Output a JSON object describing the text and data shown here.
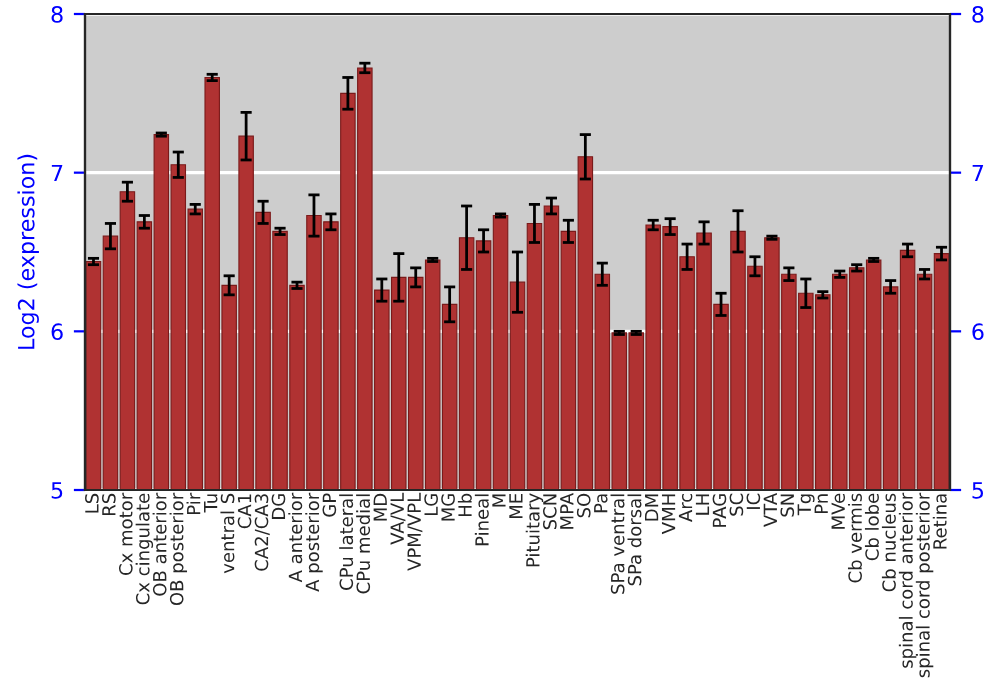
{
  "chart_data": {
    "type": "bar",
    "ylabel": "Log2 (expression)",
    "categories": [
      "LS",
      "RS",
      "Cx motor",
      "Cx cingulate",
      "OB anterior",
      "OB posterior",
      "Pir",
      "Tu",
      "ventral S",
      "CA1",
      "CA2/CA3",
      "DG",
      "A anterior",
      "A posterior",
      "GP",
      "CPu lateral",
      "CPu medial",
      "MD",
      "VA/VL",
      "VPM/VPL",
      "LG",
      "MG",
      "Hb",
      "Pineal",
      "M",
      "ME",
      "Pituitary",
      "SCN",
      "MPA",
      "SO",
      "Pa",
      "SPa ventral",
      "SPa dorsal",
      "DM",
      "VMH",
      "Arc",
      "LH",
      "PAG",
      "SC",
      "IC",
      "VTA",
      "SN",
      "Tg",
      "Pn",
      "MVe",
      "Cb vermis",
      "Cb lobe",
      "Cb nucleus",
      "spinal cord anterior",
      "spinal cord posterior",
      "Retina"
    ],
    "series": [
      {
        "color": "#b03232",
        "values": [
          6.44,
          6.6,
          6.88,
          6.69,
          7.24,
          7.05,
          6.77,
          7.6,
          6.29,
          7.23,
          6.75,
          6.63,
          6.29,
          6.73,
          6.69,
          7.5,
          7.66,
          6.26,
          6.34,
          6.34,
          6.45,
          6.17,
          6.59,
          6.57,
          6.73,
          6.31,
          6.68,
          6.79,
          6.63,
          7.1,
          6.36,
          5.99,
          5.99,
          6.67,
          6.66,
          6.47,
          6.62,
          6.17,
          6.63,
          6.41,
          6.59,
          6.36,
          6.24,
          6.23,
          6.36,
          6.4,
          6.45,
          6.28,
          6.51,
          6.36,
          6.49
        ],
        "errors": [
          0.02,
          0.08,
          0.06,
          0.04,
          0.01,
          0.08,
          0.03,
          0.02,
          0.06,
          0.15,
          0.07,
          0.02,
          0.02,
          0.13,
          0.05,
          0.1,
          0.03,
          0.07,
          0.15,
          0.06,
          0.01,
          0.11,
          0.2,
          0.07,
          0.01,
          0.19,
          0.12,
          0.05,
          0.07,
          0.14,
          0.07,
          0.01,
          0.01,
          0.03,
          0.05,
          0.08,
          0.07,
          0.07,
          0.13,
          0.06,
          0.01,
          0.04,
          0.09,
          0.02,
          0.02,
          0.02,
          0.01,
          0.04,
          0.04,
          0.03,
          0.04
        ]
      }
    ],
    "ylim": [
      5,
      8
    ],
    "yticks": [
      5,
      6,
      7,
      8
    ],
    "y2lim": [
      5,
      8
    ],
    "y2ticks": [
      5,
      6,
      7,
      8
    ],
    "grid": "y",
    "legend": false
  }
}
